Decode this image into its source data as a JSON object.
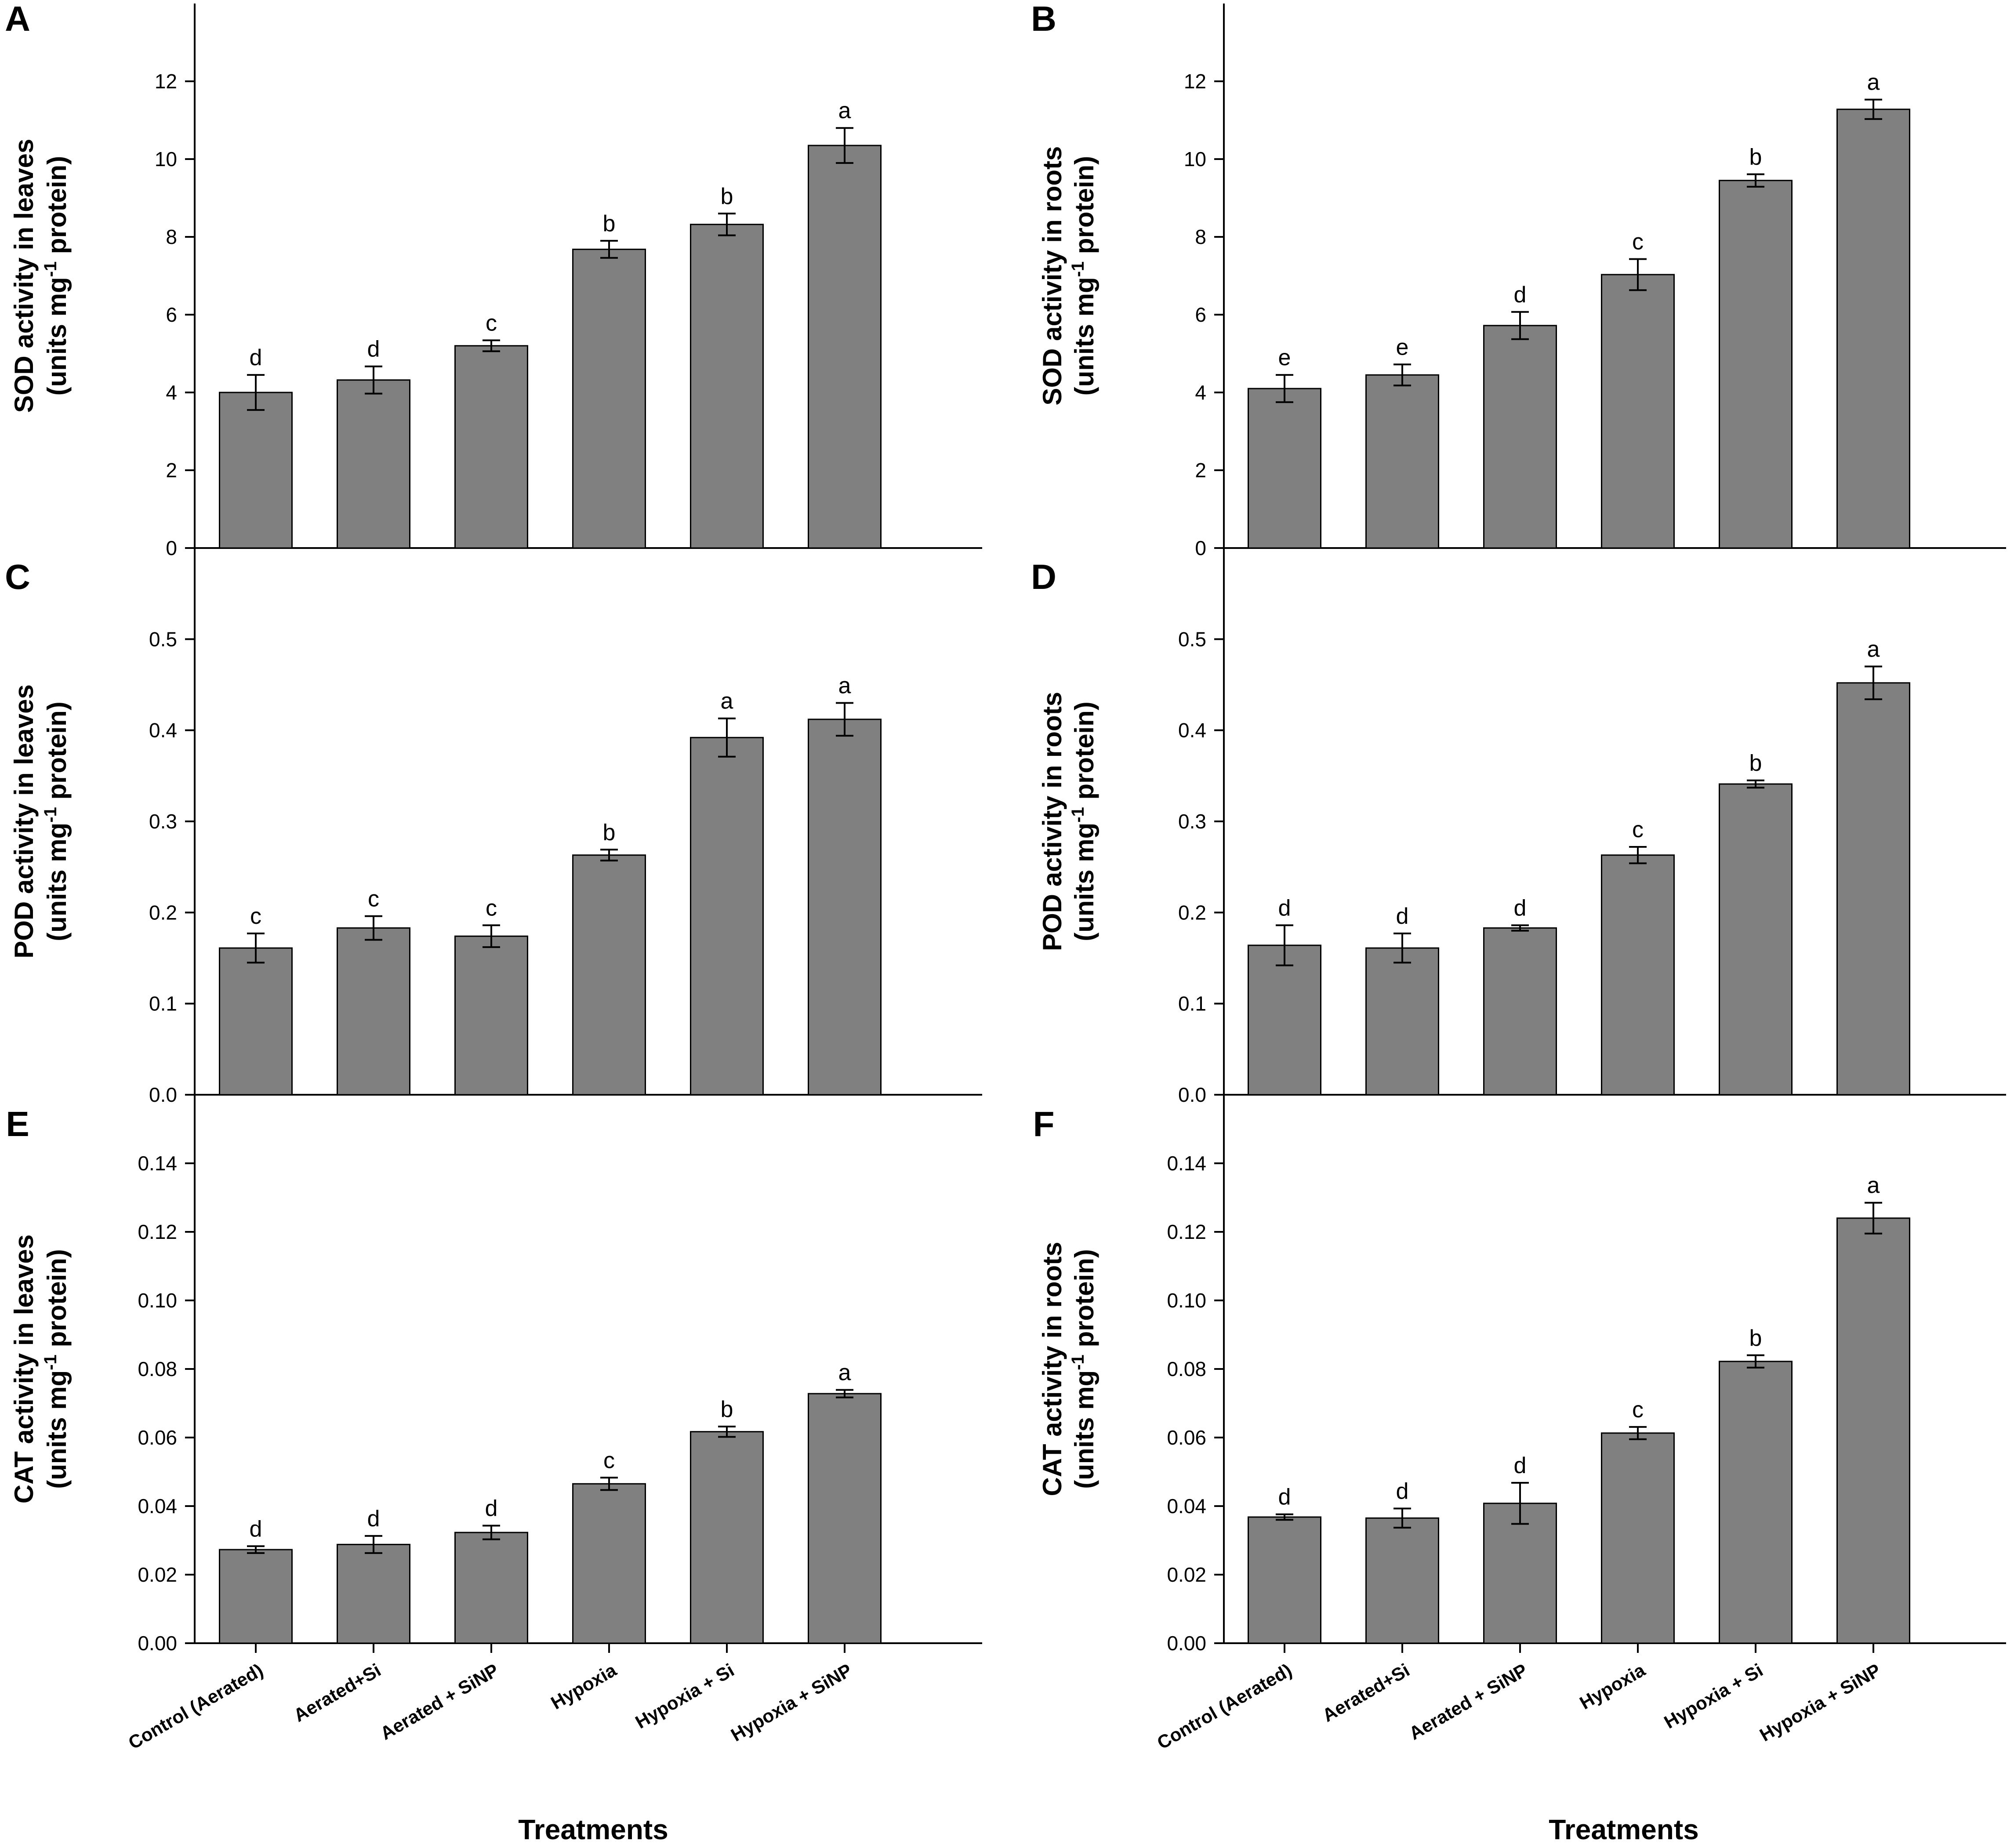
{
  "chart_data": [
    {
      "panel": "A",
      "type": "bar",
      "ylabel_line1": "SOD activity in leaves",
      "ylabel_line2_pre": "(units mg",
      "ylabel_sup": "-1",
      "ylabel_line2_post": " protein)",
      "ylim": [
        0,
        14
      ],
      "ticks": [
        0,
        2,
        4,
        6,
        8,
        10,
        12
      ],
      "tick_labels": [
        "0",
        "2",
        "4",
        "6",
        "8",
        "10",
        "12"
      ],
      "values": [
        4.0,
        4.32,
        5.2,
        7.68,
        8.32,
        10.35
      ],
      "errors": [
        0.45,
        0.35,
        0.14,
        0.22,
        0.28,
        0.45
      ],
      "letters": [
        "d",
        "d",
        "c",
        "b",
        "b",
        "a"
      ]
    },
    {
      "panel": "B",
      "type": "bar",
      "ylabel_line1": "SOD activity in roots",
      "ylabel_line2_pre": "(units mg",
      "ylabel_sup": "-1",
      "ylabel_line2_post": " protein)",
      "ylim": [
        0,
        14
      ],
      "ticks": [
        0,
        2,
        4,
        6,
        8,
        10,
        12
      ],
      "tick_labels": [
        "0",
        "2",
        "4",
        "6",
        "8",
        "10",
        "12"
      ],
      "values": [
        4.1,
        4.45,
        5.72,
        7.03,
        9.45,
        11.28
      ],
      "errors": [
        0.35,
        0.27,
        0.35,
        0.4,
        0.16,
        0.25
      ],
      "letters": [
        "e",
        "e",
        "d",
        "c",
        "b",
        "a"
      ]
    },
    {
      "panel": "C",
      "type": "bar",
      "ylabel_line1": "POD activity in leaves",
      "ylabel_line2_pre": "(units mg",
      "ylabel_sup": "-1",
      "ylabel_line2_post": " protein)",
      "ylim": [
        0,
        0.6
      ],
      "ticks": [
        0,
        0.1,
        0.2,
        0.3,
        0.4,
        0.5
      ],
      "tick_labels": [
        "0.0",
        "0.1",
        "0.2",
        "0.3",
        "0.4",
        "0.5"
      ],
      "values": [
        0.161,
        0.183,
        0.174,
        0.263,
        0.392,
        0.412
      ],
      "errors": [
        0.016,
        0.013,
        0.012,
        0.006,
        0.021,
        0.018
      ],
      "letters": [
        "c",
        "c",
        "c",
        "b",
        "a",
        "a"
      ]
    },
    {
      "panel": "D",
      "type": "bar",
      "ylabel_line1": "POD activity in roots",
      "ylabel_line2_pre": "(units mg",
      "ylabel_sup": "-1",
      "ylabel_line2_post": " protein)",
      "ylim": [
        0,
        0.6
      ],
      "ticks": [
        0,
        0.1,
        0.2,
        0.3,
        0.4,
        0.5
      ],
      "tick_labels": [
        "0.0",
        "0.1",
        "0.2",
        "0.3",
        "0.4",
        "0.5"
      ],
      "values": [
        0.164,
        0.161,
        0.183,
        0.263,
        0.341,
        0.452
      ],
      "errors": [
        0.022,
        0.016,
        0.003,
        0.009,
        0.004,
        0.018
      ],
      "letters": [
        "d",
        "d",
        "d",
        "c",
        "b",
        "a"
      ]
    },
    {
      "panel": "E",
      "type": "bar",
      "ylabel_line1": "CAT activity in leaves",
      "ylabel_line2_pre": "(units mg",
      "ylabel_sup": "-1",
      "ylabel_line2_post": " protein)",
      "ylim": [
        0,
        0.16
      ],
      "ticks": [
        0,
        0.02,
        0.04,
        0.06,
        0.08,
        0.1,
        0.12,
        0.14
      ],
      "tick_labels": [
        "0.00",
        "0.02",
        "0.04",
        "0.06",
        "0.08",
        "0.10",
        "0.12",
        "0.14"
      ],
      "values": [
        0.0273,
        0.0288,
        0.0323,
        0.0465,
        0.0617,
        0.0728
      ],
      "errors": [
        0.001,
        0.0025,
        0.002,
        0.0018,
        0.0015,
        0.0011
      ],
      "letters": [
        "d",
        "d",
        "d",
        "c",
        "b",
        "a"
      ]
    },
    {
      "panel": "F",
      "type": "bar",
      "ylabel_line1": "CAT activity in roots",
      "ylabel_line2_pre": "(units mg",
      "ylabel_sup": "-1",
      "ylabel_line2_post": " protein)",
      "ylim": [
        0,
        0.16
      ],
      "ticks": [
        0,
        0.02,
        0.04,
        0.06,
        0.08,
        0.1,
        0.12,
        0.14
      ],
      "tick_labels": [
        "0.00",
        "0.02",
        "0.04",
        "0.06",
        "0.08",
        "0.10",
        "0.12",
        "0.14"
      ],
      "values": [
        0.0368,
        0.0365,
        0.0408,
        0.0613,
        0.0822,
        0.124
      ],
      "errors": [
        0.0008,
        0.0028,
        0.006,
        0.0018,
        0.0018,
        0.0045
      ],
      "letters": [
        "d",
        "d",
        "d",
        "c",
        "b",
        "a"
      ]
    }
  ],
  "categories": [
    "Control (Aerated)",
    "Aerated+Si",
    "Aerated + SiNP",
    "Hypoxia",
    "Hypoxia + Si",
    "Hypoxia + SiNP"
  ],
  "xlabel": "Treatments",
  "colors": {
    "bar": "#808080",
    "axis": "#000000"
  }
}
